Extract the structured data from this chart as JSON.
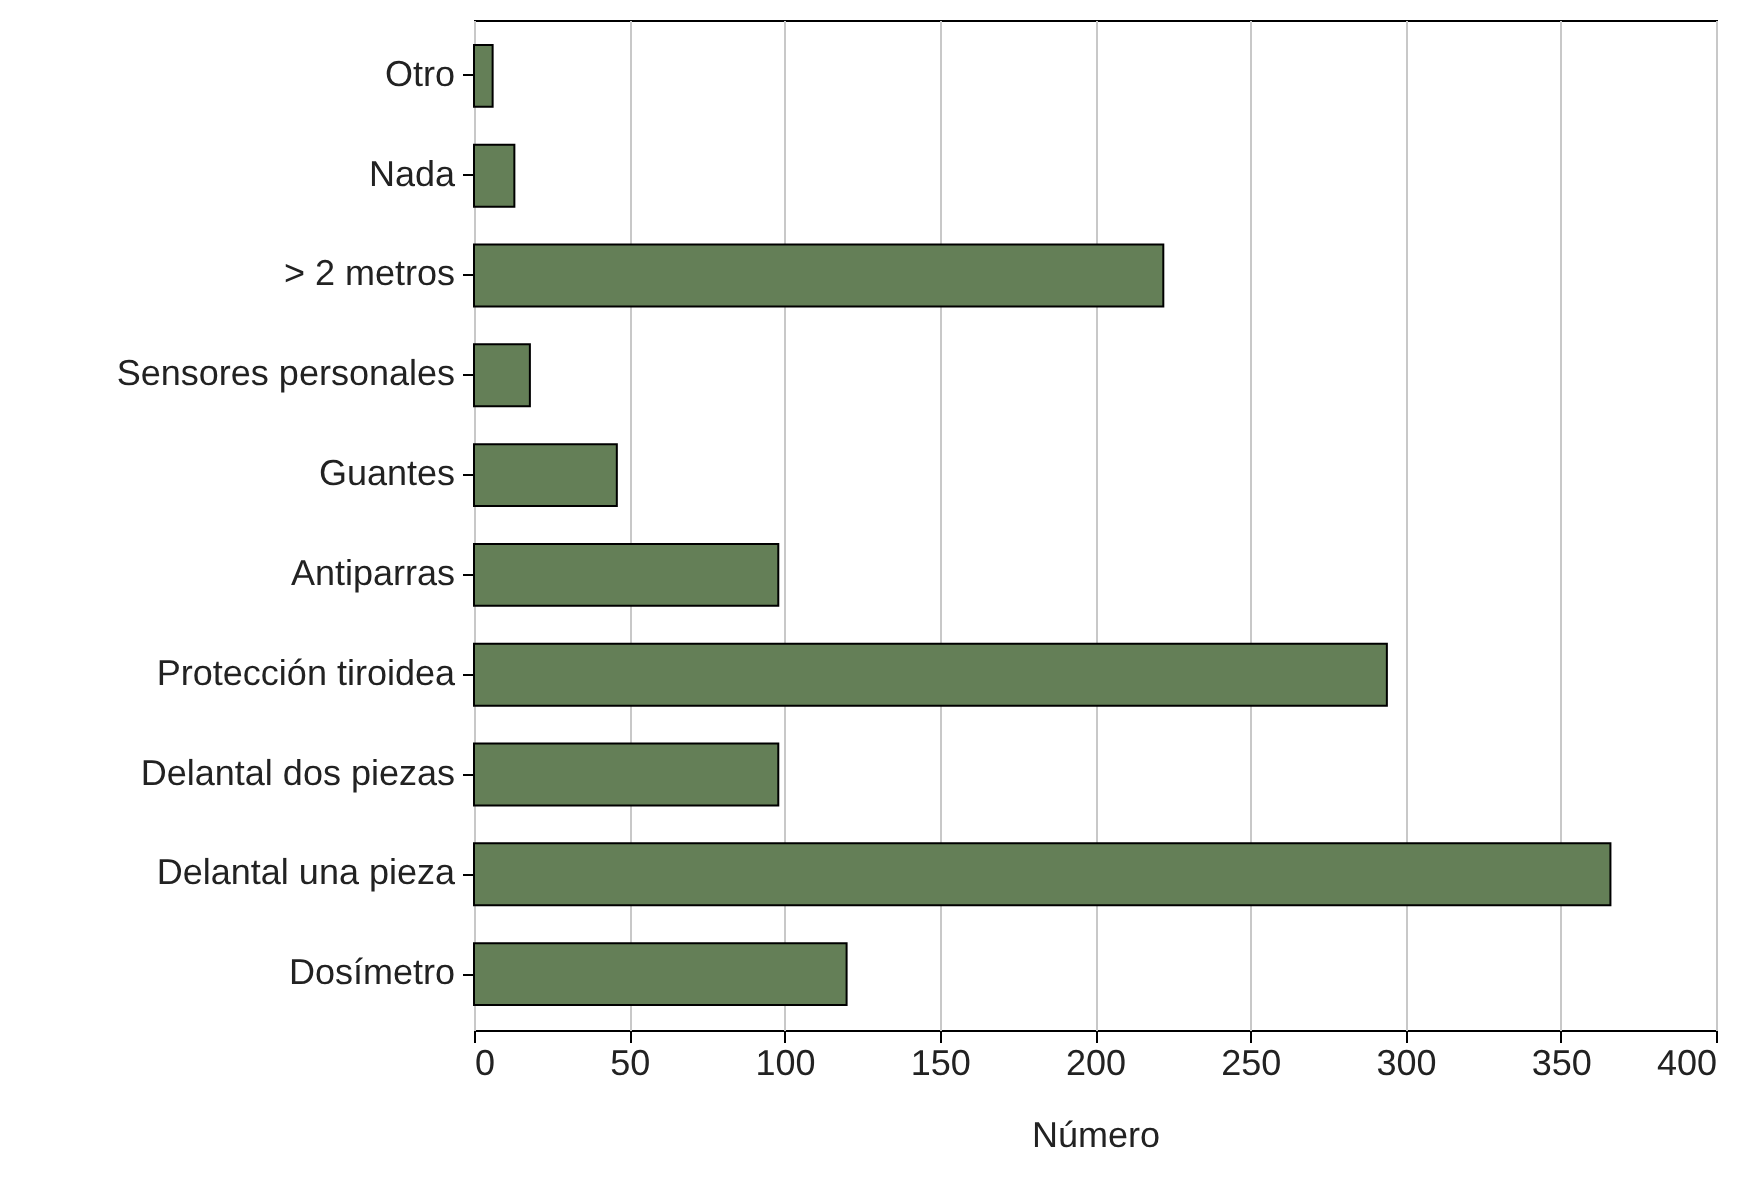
{
  "chart_data": {
    "type": "bar",
    "orientation": "horizontal",
    "xlabel": "Número",
    "categories": [
      "Otro",
      "Nada",
      "> 2 metros",
      "Sensores personales",
      "Guantes",
      "Antiparras",
      "Protección tiroidea",
      "Delantal dos piezas",
      "Delantal una pieza",
      "Dosímetro"
    ],
    "values": [
      6,
      13,
      222,
      18,
      46,
      98,
      294,
      98,
      366,
      120
    ],
    "color": "#647f57",
    "xlim": [
      0,
      400
    ],
    "xticks": [
      0,
      50,
      100,
      150,
      200,
      250,
      300,
      350,
      400
    ],
    "grid": "x"
  }
}
